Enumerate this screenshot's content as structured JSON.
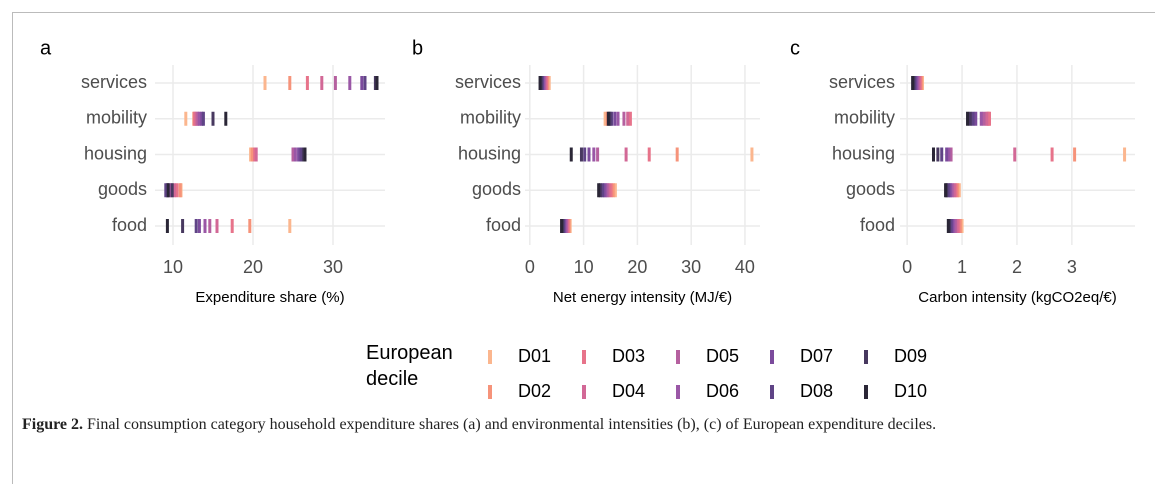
{
  "chart_data": [
    {
      "type": "strip",
      "panel": "a",
      "xlabel": "Expenditure share (%)",
      "categories": [
        "services",
        "mobility",
        "housing",
        "goods",
        "food"
      ],
      "xlim": [
        7.75,
        36.5
      ],
      "xticks": [
        10,
        20,
        30
      ],
      "grid": true,
      "series": [
        {
          "name": "D01",
          "color": "#fbb68e",
          "values": [
            21.5,
            11.6,
            19.7,
            11.0,
            24.6
          ]
        },
        {
          "name": "D02",
          "color": "#f6937a",
          "values": [
            24.6,
            12.6,
            19.9,
            10.9,
            19.6
          ]
        },
        {
          "name": "D03",
          "color": "#e7738a",
          "values": [
            26.8,
            12.7,
            20.2,
            10.5,
            17.4
          ]
        },
        {
          "name": "D04",
          "color": "#d26896",
          "values": [
            28.6,
            12.9,
            20.4,
            10.2,
            15.5
          ]
        },
        {
          "name": "D05",
          "color": "#b5609f",
          "values": [
            30.3,
            13.1,
            25.0,
            9.8,
            14.6
          ]
        },
        {
          "name": "D06",
          "color": "#9a57a6",
          "values": [
            32.1,
            13.3,
            25.3,
            9.5,
            14.0
          ]
        },
        {
          "name": "D07",
          "color": "#7b4b9c",
          "values": [
            33.6,
            13.6,
            25.7,
            9.3,
            13.3
          ]
        },
        {
          "name": "D08",
          "color": "#5f4486",
          "values": [
            34.0,
            13.8,
            26.0,
            9.1,
            12.9
          ]
        },
        {
          "name": "D09",
          "color": "#47385f",
          "values": [
            35.3,
            15.0,
            26.3,
            9.9,
            11.2
          ]
        },
        {
          "name": "D10",
          "color": "#2a2636",
          "values": [
            35.5,
            16.6,
            26.5,
            9.4,
            9.3
          ]
        }
      ]
    },
    {
      "type": "strip",
      "panel": "b",
      "xlabel": "Net energy intensity (MJ/€)",
      "categories": [
        "services",
        "mobility",
        "housing",
        "goods",
        "food"
      ],
      "xlim": [
        -0.9,
        42.8
      ],
      "xticks": [
        0,
        10,
        20,
        30,
        40
      ],
      "grid": true,
      "series": [
        {
          "name": "D01",
          "color": "#fbb68e",
          "values": [
            3.6,
            14.0,
            41.3,
            15.9,
            7.5
          ]
        },
        {
          "name": "D02",
          "color": "#f6937a",
          "values": [
            3.3,
            14.4,
            27.4,
            15.5,
            7.3
          ]
        },
        {
          "name": "D03",
          "color": "#e7738a",
          "values": [
            3.1,
            18.7,
            22.2,
            15.1,
            7.1
          ]
        },
        {
          "name": "D04",
          "color": "#d26896",
          "values": [
            2.9,
            18.2,
            17.9,
            14.7,
            6.9
          ]
        },
        {
          "name": "D05",
          "color": "#b5609f",
          "values": [
            2.7,
            17.5,
            12.6,
            14.4,
            6.8
          ]
        },
        {
          "name": "D06",
          "color": "#9a57a6",
          "values": [
            2.6,
            16.4,
            11.9,
            14.1,
            6.6
          ]
        },
        {
          "name": "D07",
          "color": "#7b4b9c",
          "values": [
            2.4,
            15.8,
            11.0,
            13.8,
            6.4
          ]
        },
        {
          "name": "D08",
          "color": "#5f4486",
          "values": [
            2.3,
            15.2,
            10.2,
            13.5,
            6.3
          ]
        },
        {
          "name": "D09",
          "color": "#47385f",
          "values": [
            2.1,
            14.9,
            9.6,
            13.1,
            6.1
          ]
        },
        {
          "name": "D10",
          "color": "#2a2636",
          "values": [
            1.9,
            14.6,
            7.7,
            12.8,
            5.9
          ]
        }
      ]
    },
    {
      "type": "strip",
      "panel": "c",
      "xlabel": "Carbon intensity (kgCO2eq/€)",
      "categories": [
        "services",
        "mobility",
        "housing",
        "goods",
        "food"
      ],
      "xlim": [
        -0.13,
        4.15
      ],
      "xticks": [
        0,
        1,
        2,
        3
      ],
      "grid": true,
      "series": [
        {
          "name": "D01",
          "color": "#fbb68e",
          "values": [
            0.28,
            1.46,
            3.96,
            0.95,
            1.0
          ]
        },
        {
          "name": "D02",
          "color": "#f6937a",
          "values": [
            0.26,
            1.48,
            3.05,
            0.92,
            0.97
          ]
        },
        {
          "name": "D03",
          "color": "#e7738a",
          "values": [
            0.24,
            1.5,
            2.64,
            0.89,
            0.94
          ]
        },
        {
          "name": "D04",
          "color": "#d26896",
          "values": [
            0.22,
            1.45,
            1.96,
            0.86,
            0.91
          ]
        },
        {
          "name": "D05",
          "color": "#b5609f",
          "values": [
            0.2,
            1.4,
            0.8,
            0.83,
            0.88
          ]
        },
        {
          "name": "D06",
          "color": "#9a57a6",
          "values": [
            0.18,
            1.35,
            0.76,
            0.8,
            0.85
          ]
        },
        {
          "name": "D07",
          "color": "#7b4b9c",
          "values": [
            0.16,
            1.25,
            0.72,
            0.78,
            0.82
          ]
        },
        {
          "name": "D08",
          "color": "#5f4486",
          "values": [
            0.14,
            1.2,
            0.63,
            0.75,
            0.8
          ]
        },
        {
          "name": "D09",
          "color": "#47385f",
          "values": [
            0.12,
            1.15,
            0.56,
            0.72,
            0.77
          ]
        },
        {
          "name": "D10",
          "color": "#2a2636",
          "values": [
            0.1,
            1.1,
            0.48,
            0.7,
            0.75
          ]
        }
      ]
    }
  ],
  "legend": {
    "title": "European decile"
  },
  "caption": {
    "label": "Figure 2.",
    "text": "Final consumption category household expenditure shares (a) and environmental intensities (b), (c) of European expenditure deciles."
  }
}
